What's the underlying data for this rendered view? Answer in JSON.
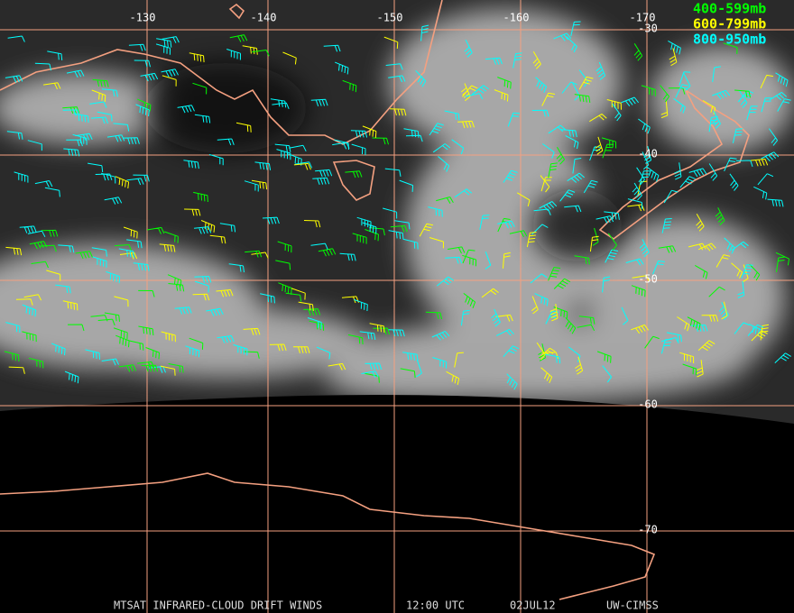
{
  "longitude_labels": [
    "-130",
    "-140",
    "-150",
    "-160",
    "-170"
  ],
  "latitude_labels": [
    "-30",
    "-40",
    "-50",
    "-60",
    "-70"
  ],
  "legend": [
    {
      "label": "400-599mb",
      "color": "#00ff00"
    },
    {
      "label": "600-799mb",
      "color": "#ffff00"
    },
    {
      "label": "800-950mb",
      "color": "#00ffff"
    }
  ],
  "footer": {
    "product": "MTSAT INFRARED-CLOUD DRIFT WINDS",
    "time": "12:00 UTC",
    "date": "02JUL12",
    "source": "UW-CIMSS"
  }
}
